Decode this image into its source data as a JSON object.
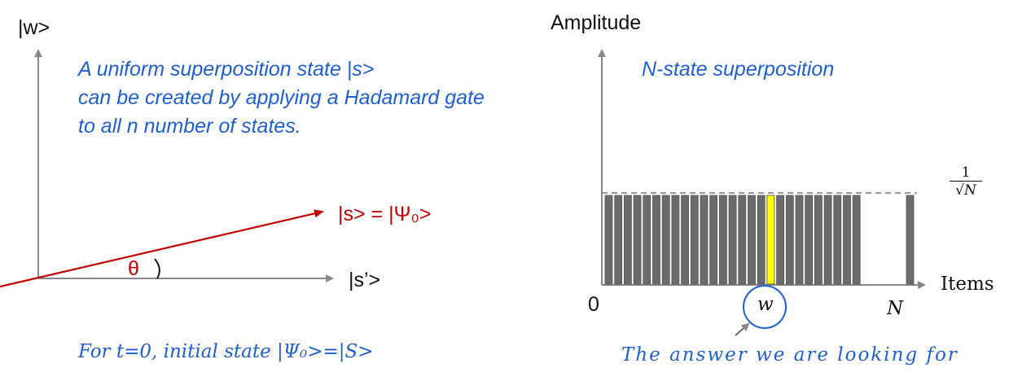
{
  "left": {
    "ket_w": "|w>",
    "ket_s_prime": "|s’>",
    "ket_s": "|s> = |Ψ₀>",
    "theta": "θ",
    "desc_lines": [
      "A uniform superposition state |s>",
      "can be created by applying a Hadamard gate",
      "to all n number of states."
    ],
    "caption": "For t=0, initial state |Ψ₀>=|S>"
  },
  "right": {
    "y_label": "Amplitude",
    "x_label": "Items",
    "title": "N-state superposition",
    "origin_label": "0",
    "n_label": "N",
    "w_label": "w",
    "level_label_num": "1",
    "level_label_den": "√N",
    "caption": "The answer we are looking for"
  },
  "chart_data": {
    "type": "bar",
    "title": "N-state superposition",
    "xlabel": "Items",
    "ylabel": "Amplitude",
    "level": "1/√N",
    "bar_count": 28,
    "marked_index": 17,
    "values": [
      1,
      1,
      1,
      1,
      1,
      1,
      1,
      1,
      1,
      1,
      1,
      1,
      1,
      1,
      1,
      1,
      1,
      1,
      1,
      1,
      1,
      1,
      1,
      1,
      1,
      1,
      1,
      1
    ],
    "colors": {
      "bar": "#6b6b6b",
      "marked": "#ffff00"
    }
  },
  "colors": {
    "blue": "#1f5fd0",
    "red": "#c00000",
    "axis": "#888888"
  }
}
